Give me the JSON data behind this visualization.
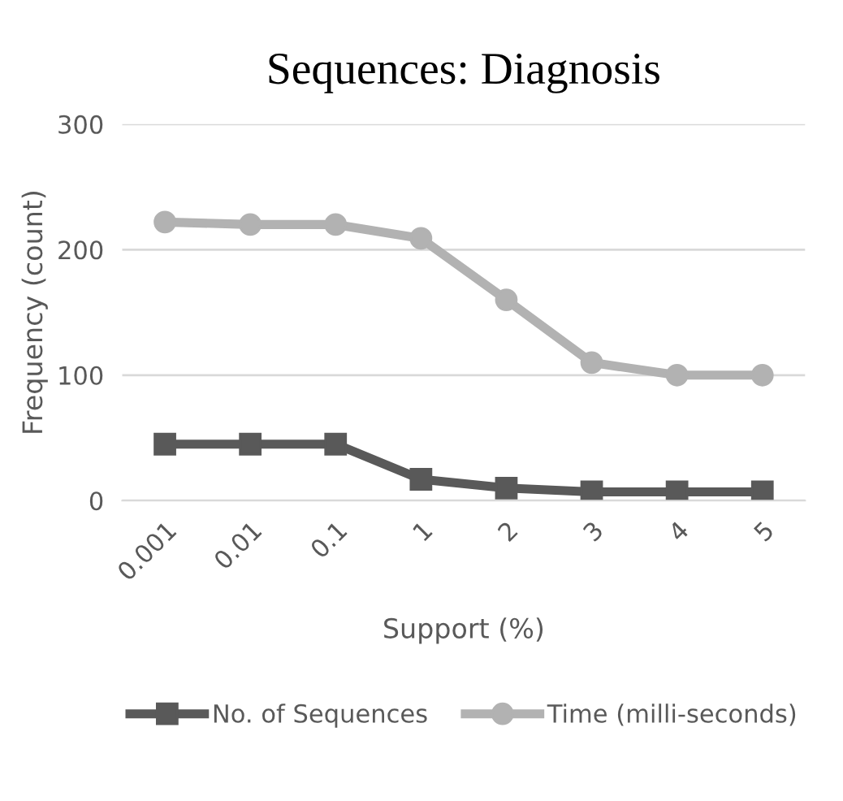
{
  "chart_data": {
    "type": "line",
    "title": "Sequences: Diagnosis",
    "xlabel": "Support (%)",
    "ylabel": "Frequency (count)",
    "categories": [
      "0.001",
      "0.01",
      "0.1",
      "1",
      "2",
      "3",
      "4",
      "5"
    ],
    "series": [
      {
        "name": "No. of Sequences",
        "color": "#595959",
        "marker": "square",
        "values": [
          45,
          45,
          45,
          17,
          10,
          7,
          7,
          7
        ]
      },
      {
        "name": "Time (milli-seconds)",
        "color": "#b2b2b2",
        "marker": "circle",
        "values": [
          222,
          220,
          220,
          209,
          160,
          110,
          100,
          100
        ]
      }
    ],
    "ylim": [
      0,
      300
    ],
    "yticks": [
      0,
      100,
      200,
      300
    ],
    "grid": "y",
    "legend": "bottom",
    "line_style": "solid"
  }
}
